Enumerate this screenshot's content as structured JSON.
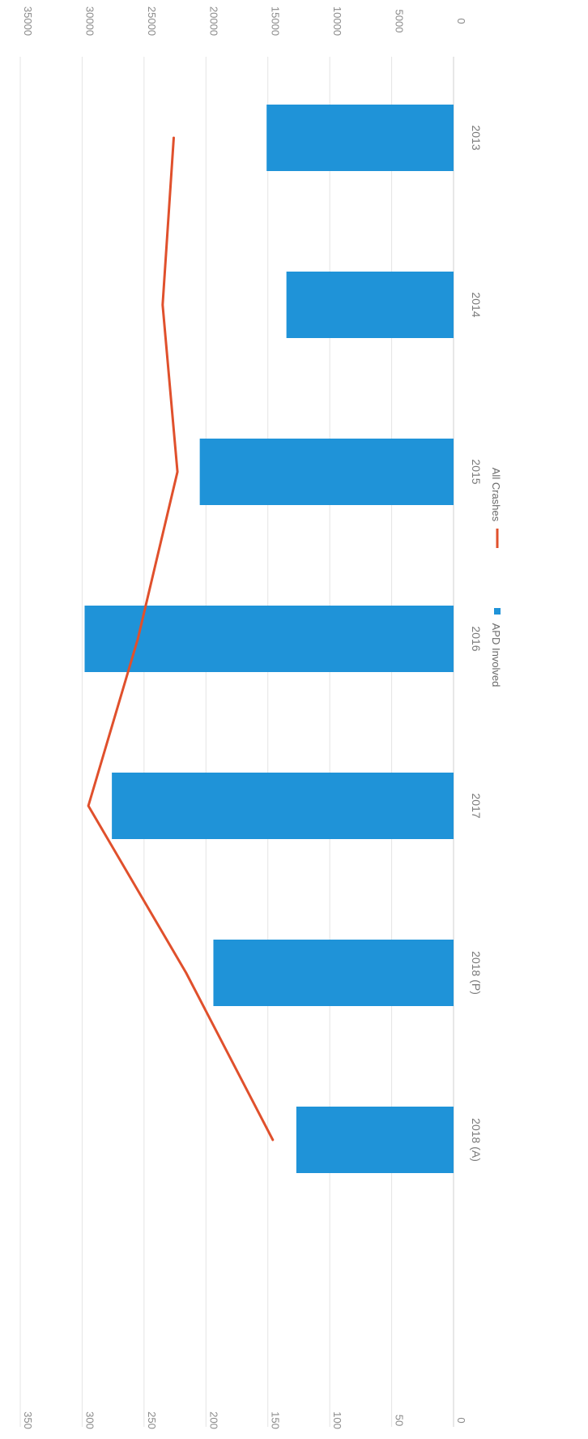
{
  "chart_data": {
    "type": "bar",
    "orientation": "rotated-90-clockwise",
    "categories": [
      "2013",
      "2014",
      "2015",
      "2016",
      "2017",
      "2018 (P)",
      "2018 (A)"
    ],
    "series": [
      {
        "name": "APD Involved",
        "type": "bar",
        "axis": "primary",
        "color": "#1f93d8",
        "values": [
          151,
          135,
          205,
          298,
          276,
          194,
          127
        ]
      },
      {
        "name": "All Crashes",
        "type": "line",
        "axis": "secondary",
        "color": "#e0502c",
        "values": [
          22600,
          23500,
          22300,
          25500,
          29500,
          21600,
          14600
        ]
      }
    ],
    "primary_axis": {
      "min": 0,
      "max": 350,
      "step": 50,
      "ticks": [
        "0",
        "50",
        "100",
        "150",
        "200",
        "250",
        "300",
        "350"
      ]
    },
    "secondary_axis": {
      "min": 0,
      "max": 35000,
      "step": 5000,
      "ticks": [
        "0",
        "5000",
        "10000",
        "15000",
        "20000",
        "25000",
        "30000",
        "35000"
      ]
    },
    "grid": true,
    "legend_position": "bottom"
  }
}
